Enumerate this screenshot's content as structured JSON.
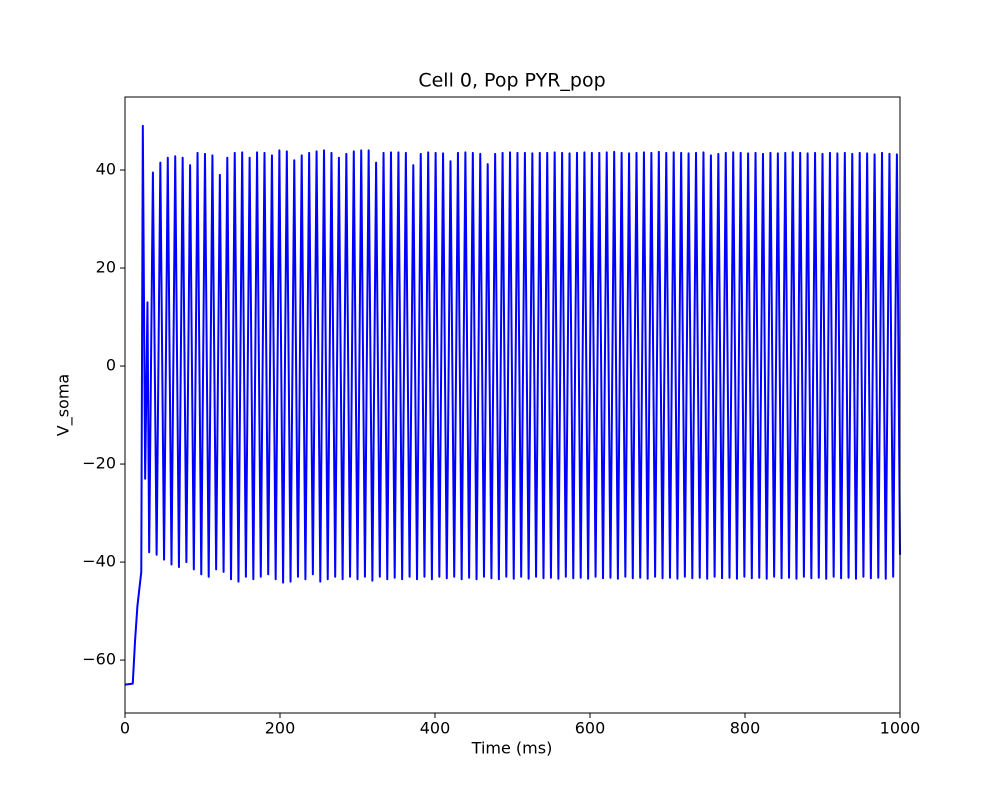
{
  "chart_data": {
    "type": "line",
    "title": "Cell 0, Pop PYR_pop",
    "xlabel": "Time (ms)",
    "ylabel": "V_soma",
    "color": "#0000ff",
    "xlim": [
      0,
      1000
    ],
    "ylim": [
      -70.8,
      54.9
    ],
    "xticks": [
      0,
      200,
      400,
      600,
      800,
      1000
    ],
    "yticks": [
      {
        "value": -60,
        "label": "−60"
      },
      {
        "value": -40,
        "label": "−40"
      },
      {
        "value": -20,
        "label": "−20"
      },
      0,
      20,
      40
    ],
    "x": [
      0,
      10,
      13,
      16,
      21,
      23,
      26,
      29,
      31.2,
      36,
      40.8,
      45.6,
      50.4,
      55.2,
      60,
      64.8,
      69.6,
      74.4,
      79.2,
      84,
      88.8,
      93.6,
      98.4,
      103.2,
      108,
      112.8,
      117.6,
      122.4,
      127.2,
      132,
      136.8,
      141.6,
      146.4,
      151.2,
      156,
      160.8,
      165.6,
      170.4,
      175.2,
      180,
      184.8,
      189.6,
      194.4,
      199.2,
      204,
      208.8,
      213.6,
      218.4,
      223.2,
      228,
      232.8,
      237.6,
      242.4,
      247.2,
      252,
      256.8,
      261.6,
      266.4,
      271.2,
      276,
      280.8,
      285.6,
      290.4,
      295.2,
      300,
      304.8,
      309.6,
      314.4,
      319.2,
      324,
      328.8,
      333.6,
      338.4,
      343.2,
      348,
      352.8,
      357.6,
      362.4,
      367.2,
      372,
      376.8,
      381.6,
      386.4,
      391.2,
      396,
      400.8,
      405.6,
      410.4,
      415.2,
      420,
      424.8,
      429.6,
      434.4,
      439.2,
      444,
      448.8,
      453.6,
      458.4,
      463.2,
      468,
      472.8,
      477.6,
      482.4,
      487.2,
      492,
      496.8,
      501.6,
      506.4,
      511.2,
      516,
      520.8,
      525.6,
      530.4,
      535.2,
      540,
      544.8,
      549.6,
      554.4,
      559.2,
      564,
      568.8,
      573.6,
      578.4,
      583.2,
      588,
      592.8,
      597.6,
      602.4,
      607.2,
      612,
      616.8,
      621.6,
      626.4,
      631.2,
      636,
      640.8,
      645.6,
      650.4,
      655.2,
      660,
      664.8,
      669.6,
      674.4,
      679.2,
      684,
      688.8,
      693.6,
      698.4,
      703.2,
      708,
      712.8,
      717.6,
      722.4,
      727.2,
      732,
      736.8,
      741.6,
      746.4,
      751.2,
      756,
      760.8,
      765.6,
      770.4,
      775.2,
      780,
      784.8,
      789.6,
      794.4,
      799.2,
      804,
      808.8,
      813.6,
      818.4,
      823.2,
      828,
      832.8,
      837.6,
      842.4,
      847.2,
      852,
      856.8,
      861.6,
      866.4,
      871.2,
      876,
      880.8,
      885.6,
      890.4,
      895.2,
      900,
      904.8,
      909.6,
      914.4,
      919.2,
      924,
      928.8,
      933.6,
      938.4,
      943.2,
      948,
      952.8,
      957.6,
      962.4,
      967.2,
      972,
      976.8,
      981.6,
      986.4,
      991.2,
      996,
      1000
    ],
    "values": [
      -65,
      -64.8,
      -56,
      -49,
      -42,
      49,
      -23,
      13,
      -38,
      39.5,
      -38.5,
      41.5,
      -39.5,
      42.5,
      -40.5,
      42.8,
      -41,
      42.5,
      -40,
      41,
      -41.5,
      43.5,
      -42.5,
      43.3,
      -43,
      43,
      -41.5,
      39,
      -42,
      42.5,
      -43.5,
      43.5,
      -44,
      43.6,
      -43,
      42.5,
      -43.5,
      43.6,
      -43,
      43.5,
      -42.5,
      43,
      -43.5,
      44,
      -44.2,
      43.8,
      -44,
      42,
      -43,
      43,
      -43.5,
      43.5,
      -42.5,
      43.8,
      -44,
      44,
      -43.5,
      43.5,
      -43,
      42.5,
      -43.5,
      43.3,
      -43,
      43.8,
      -43.5,
      44,
      -43,
      44,
      -43.8,
      41.5,
      -43,
      43.5,
      -43.5,
      43.6,
      -43.2,
      43.6,
      -43.5,
      43.5,
      -43,
      41,
      -43.5,
      43.3,
      -43,
      43.6,
      -43.5,
      43.5,
      -43,
      43.4,
      -43.3,
      41.8,
      -43,
      43.5,
      -43.5,
      43.6,
      -43.2,
      43.5,
      -43.5,
      43.3,
      -43,
      41.2,
      -43.3,
      43.3,
      -43.5,
      43.5,
      -43,
      43.6,
      -43.4,
      43.5,
      -43,
      43.5,
      -43.4,
      43.4,
      -43,
      43.5,
      -43.3,
      43.5,
      -43.2,
      43.6,
      -43.4,
      43.5,
      -43,
      43.4,
      -43.3,
      43.5,
      -43.2,
      43.6,
      -43.4,
      43.5,
      -43,
      43.5,
      -43.3,
      43.6,
      -43.2,
      43.7,
      -43.4,
      43.5,
      -43,
      43.4,
      -43.3,
      43.5,
      -43.2,
      43.6,
      -43.4,
      43.5,
      -43,
      43.7,
      -43.3,
      43.5,
      -43.2,
      43.6,
      -43.4,
      43.5,
      -43,
      43.4,
      -43.3,
      43.5,
      -43.2,
      43.6,
      -43.4,
      43,
      -43,
      43.3,
      -43.3,
      43.5,
      -43.2,
      43.6,
      -43.4,
      43.5,
      -43,
      43.4,
      -43.3,
      43.5,
      -43.2,
      43.3,
      -43.4,
      43.5,
      -43,
      43.4,
      -43.3,
      43.5,
      -43.2,
      43.6,
      -43.4,
      43.5,
      -43,
      43.4,
      -43.3,
      43.5,
      -43.2,
      43.3,
      -43.4,
      43.5,
      -43,
      43.4,
      -43.3,
      43.5,
      -43.2,
      43.3,
      -43.4,
      43.5,
      -43,
      43.4,
      -43.3,
      43.2,
      -43.2,
      43.5,
      -43.4,
      43.3,
      -43,
      43.2,
      -38.5
    ]
  }
}
